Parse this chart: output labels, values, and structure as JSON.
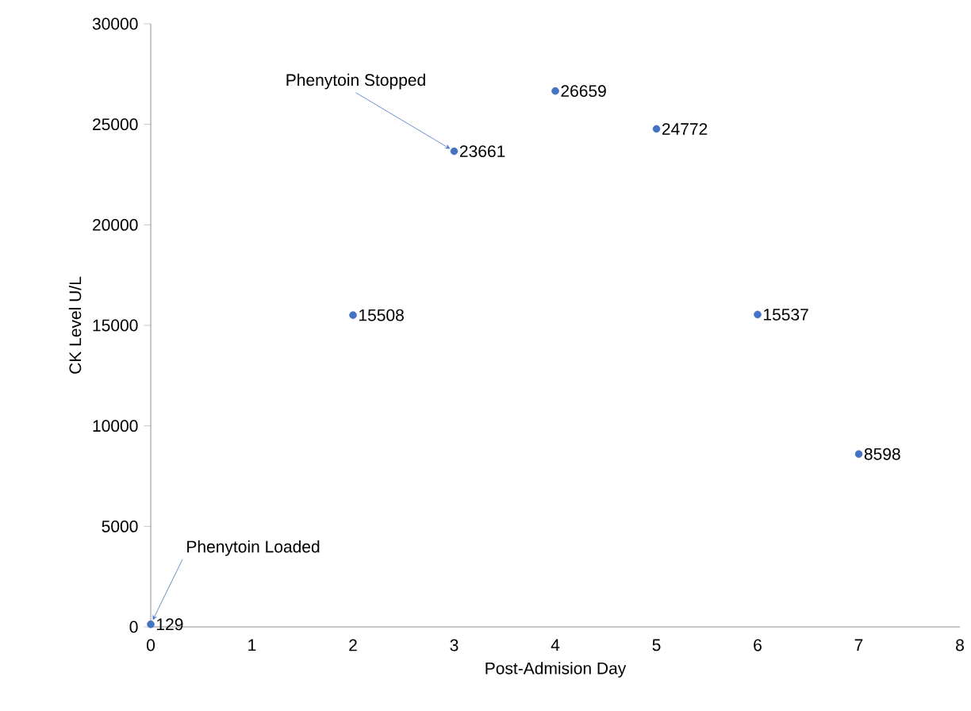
{
  "chart_data": {
    "type": "scatter",
    "xlabel": "Post-Admision Day",
    "ylabel": "CK Level U/L",
    "x": [
      0,
      2,
      3,
      4,
      5,
      6,
      7
    ],
    "values": [
      129,
      15508,
      23661,
      26659,
      24772,
      15537,
      8598
    ],
    "value_labels": [
      "129",
      "15508",
      "23661",
      "26659",
      "24772",
      "15537",
      "8598"
    ],
    "color": "#4472c4",
    "grid": false,
    "xlim": [
      0,
      8
    ],
    "xticks": [
      0,
      1,
      2,
      3,
      4,
      5,
      6,
      7,
      8
    ],
    "ylim": [
      0,
      30000
    ],
    "yticks": [
      0,
      5000,
      10000,
      15000,
      20000,
      25000,
      30000
    ],
    "annotations": [
      {
        "text": "Phenytoin Stopped",
        "x": 3,
        "y": 23661
      },
      {
        "text": "Phenytoin Loaded",
        "x": 0,
        "y": 129
      }
    ]
  }
}
